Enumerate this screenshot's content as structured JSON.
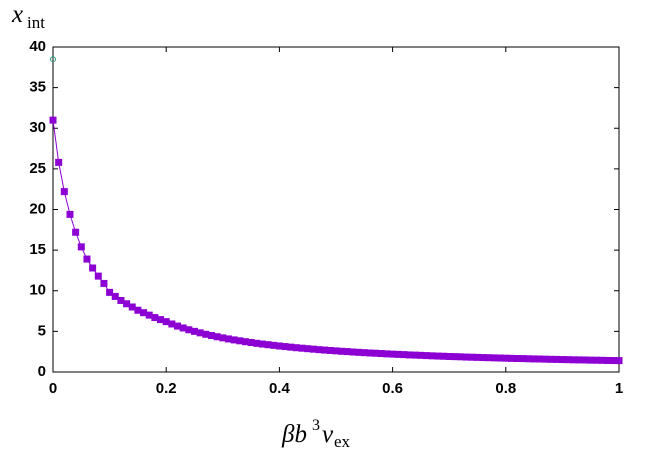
{
  "chart_data": {
    "type": "line",
    "ylabel": [
      "x",
      "int"
    ],
    "xlabel": [
      "βb",
      "3",
      "v",
      "ex"
    ],
    "xlim": [
      0,
      1
    ],
    "xticks": [
      0,
      0.2,
      0.4,
      0.6,
      0.8,
      1
    ],
    "ylim": [
      0,
      40
    ],
    "yticks": [
      0,
      5,
      10,
      15,
      20,
      25,
      30,
      35,
      40
    ],
    "series": [
      {
        "color": "#8c00d4",
        "marker": "square",
        "x": [
          0,
          0.01,
          0.02,
          0.03,
          0.04,
          0.05,
          0.06,
          0.07,
          0.08,
          0.09,
          0.1,
          0.11,
          0.12,
          0.13,
          0.14,
          0.15,
          0.16,
          0.17,
          0.18,
          0.19,
          0.2,
          0.21,
          0.22,
          0.23,
          0.24,
          0.25,
          0.26,
          0.27,
          0.28,
          0.29,
          0.3,
          0.31,
          0.32,
          0.33,
          0.34,
          0.35,
          0.36,
          0.37,
          0.38,
          0.39,
          0.4,
          0.41,
          0.42,
          0.43,
          0.44,
          0.45,
          0.46,
          0.47,
          0.48,
          0.49,
          0.5,
          0.51,
          0.52,
          0.53,
          0.54,
          0.55,
          0.56,
          0.57,
          0.58,
          0.59,
          0.6,
          0.61,
          0.62,
          0.63,
          0.64,
          0.65,
          0.66,
          0.67,
          0.68,
          0.69,
          0.7,
          0.71,
          0.72,
          0.73,
          0.74,
          0.75,
          0.76,
          0.77,
          0.78,
          0.79,
          0.8,
          0.81,
          0.82,
          0.83,
          0.84,
          0.85,
          0.86,
          0.87,
          0.88,
          0.89,
          0.9,
          0.91,
          0.92,
          0.93,
          0.94,
          0.95,
          0.96,
          0.97,
          0.98,
          0.99,
          1
        ],
        "values": [
          31,
          25.8,
          22.2,
          19.4,
          17.2,
          15.4,
          13.9,
          12.8,
          11.8,
          10.9,
          9.8,
          9.3,
          8.8,
          8.4,
          8,
          7.6,
          7.3,
          7,
          6.7,
          6.45,
          6.2,
          5.91,
          5.65,
          5.42,
          5.2,
          5,
          4.82,
          4.64,
          4.49,
          4.34,
          4.2,
          4.07,
          3.95,
          3.84,
          3.73,
          3.63,
          3.53,
          3.44,
          3.36,
          3.28,
          3.2,
          3.13,
          3.06,
          2.99,
          2.93,
          2.87,
          2.81,
          2.75,
          2.7,
          2.65,
          2.6,
          2.55,
          2.51,
          2.46,
          2.42,
          2.38,
          2.34,
          2.31,
          2.27,
          2.23,
          2.2,
          2.17,
          2.14,
          2.1,
          2.08,
          2.05,
          2.02,
          1.99,
          1.96,
          1.94,
          1.91,
          1.89,
          1.87,
          1.84,
          1.82,
          1.8,
          1.78,
          1.76,
          1.74,
          1.72,
          1.7,
          1.68,
          1.66,
          1.65,
          1.63,
          1.61,
          1.6,
          1.58,
          1.56,
          1.55,
          1.53,
          1.52,
          1.5,
          1.49,
          1.48,
          1.46,
          1.45,
          1.44,
          1.42,
          1.41,
          1.4
        ]
      },
      {
        "color": "#2a9a7a",
        "marker": "circle",
        "x": [
          0
        ],
        "values": [
          38.5
        ]
      }
    ]
  }
}
